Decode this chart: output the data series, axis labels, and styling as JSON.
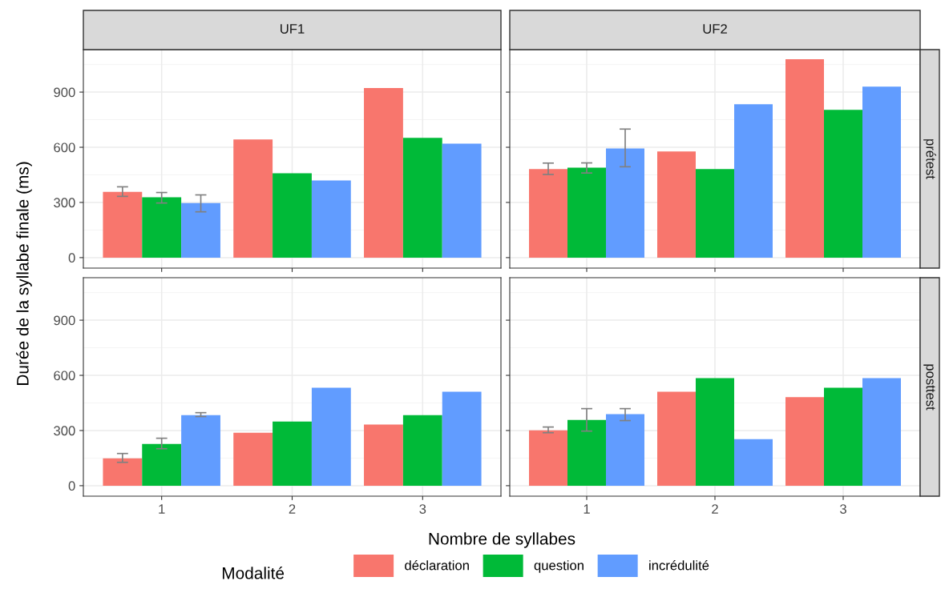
{
  "chart_data": [
    {
      "type": "bar",
      "title": "UF1",
      "ylabel": "Durée de la syllabe finale (ms)",
      "legend_title": "Modalité",
      "categories": [
        "1",
        "2",
        "3"
      ],
      "ylim": [
        -57,
        1131
      ],
      "yticks": [
        0,
        300,
        600,
        900
      ],
      "grid": true,
      "legend": "bottom",
      "tick_labels": "y",
      "series": [
        {
          "name": "déclaration",
          "color": "#f8766d",
          "values": [
            358,
            642,
            922
          ],
          "errors": [
            [
              333,
              385
            ],
            null,
            null
          ]
        },
        {
          "name": "question",
          "color": "#00ba38",
          "values": [
            328,
            459,
            651
          ],
          "errors": [
            [
              297,
              354
            ],
            null,
            null
          ]
        },
        {
          "name": "incrédulité",
          "color": "#619cff",
          "values": [
            297,
            419,
            620
          ],
          "errors": [
            [
              249,
              341
            ],
            null,
            null
          ]
        }
      ]
    },
    {
      "type": "bar",
      "title": "UF2",
      "annotations": [
        "prétest"
      ],
      "categories": [
        "1",
        "2",
        "3"
      ],
      "ylim": [
        -57,
        1131
      ],
      "yticks": [
        0,
        300,
        600,
        900
      ],
      "grid": true,
      "tick_labels": false,
      "series": [
        {
          "color": "#f8766d",
          "values": [
            481,
            577,
            1079
          ],
          "errors": [
            [
              452,
              514
            ],
            null,
            null
          ]
        },
        {
          "color": "#00ba38",
          "values": [
            489,
            481,
            804
          ],
          "errors": [
            [
              460,
              515
            ],
            null,
            null
          ]
        },
        {
          "color": "#619cff",
          "values": [
            594,
            834,
            930
          ],
          "errors": [
            [
              494,
              699
            ],
            null,
            null
          ]
        }
      ]
    },
    {
      "type": "bar",
      "xlabel": "Nombre de syllabes",
      "categories": [
        "1",
        "2",
        "3"
      ],
      "ylim": [
        -57,
        1131
      ],
      "yticks": [
        0,
        300,
        600,
        900
      ],
      "grid": true,
      "series": [
        {
          "color": "#f8766d",
          "values": [
            149,
            288,
            332
          ],
          "errors": [
            [
              127,
              175
            ],
            null,
            null
          ]
        },
        {
          "color": "#00ba38",
          "values": [
            227,
            349,
            384
          ],
          "errors": [
            [
              201,
              258
            ],
            null,
            null
          ]
        },
        {
          "color": "#619cff",
          "values": [
            384,
            533,
            511
          ],
          "errors": [
            [
              376,
              397
            ],
            null,
            null
          ]
        }
      ]
    },
    {
      "type": "bar",
      "annotations": [
        "posttest"
      ],
      "categories": [
        "1",
        "2",
        "3"
      ],
      "ylim": [
        -57,
        1131
      ],
      "yticks": [
        0,
        300,
        600,
        900
      ],
      "grid": true,
      "tick_labels": "x",
      "series": [
        {
          "color": "#f8766d",
          "values": [
            301,
            511,
            481
          ],
          "errors": [
            [
              288,
              319
            ],
            null,
            null
          ]
        },
        {
          "color": "#00ba38",
          "values": [
            358,
            585,
            533
          ],
          "errors": [
            [
              297,
              419
            ],
            null,
            null
          ]
        },
        {
          "color": "#619cff",
          "values": [
            389,
            253,
            585
          ],
          "errors": [
            [
              354,
              419
            ],
            null,
            null
          ]
        }
      ]
    }
  ]
}
